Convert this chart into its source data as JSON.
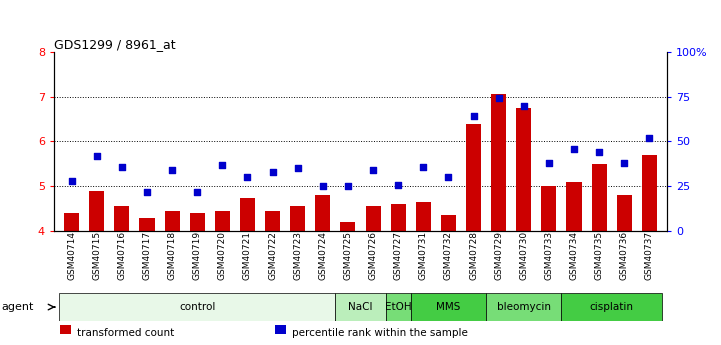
{
  "title": "GDS1299 / 8961_at",
  "samples": [
    "GSM40714",
    "GSM40715",
    "GSM40716",
    "GSM40717",
    "GSM40718",
    "GSM40719",
    "GSM40720",
    "GSM40721",
    "GSM40722",
    "GSM40723",
    "GSM40724",
    "GSM40725",
    "GSM40726",
    "GSM40727",
    "GSM40731",
    "GSM40732",
    "GSM40728",
    "GSM40729",
    "GSM40730",
    "GSM40733",
    "GSM40734",
    "GSM40735",
    "GSM40736",
    "GSM40737"
  ],
  "bar_values": [
    4.4,
    4.9,
    4.55,
    4.3,
    4.45,
    4.4,
    4.45,
    4.75,
    4.45,
    4.55,
    4.8,
    4.2,
    4.55,
    4.6,
    4.65,
    4.35,
    6.4,
    7.05,
    6.75,
    5.0,
    5.1,
    5.5,
    4.8,
    5.7
  ],
  "scatter_values": [
    28,
    42,
    36,
    22,
    34,
    22,
    37,
    30,
    33,
    35,
    25,
    25,
    34,
    26,
    36,
    30,
    64,
    74,
    70,
    38,
    46,
    44,
    38,
    52
  ],
  "bar_color": "#cc0000",
  "scatter_color": "#0000cc",
  "ylim_left": [
    4.0,
    8.0
  ],
  "ylim_right": [
    0,
    100
  ],
  "yticks_left": [
    4,
    5,
    6,
    7,
    8
  ],
  "yticks_right": [
    0,
    25,
    50,
    75,
    100
  ],
  "yticklabels_right": [
    "0",
    "25",
    "50",
    "75",
    "100%"
  ],
  "agent_groups": [
    {
      "label": "control",
      "start": 0,
      "end": 11,
      "color": "#e8f8e8"
    },
    {
      "label": "NaCl",
      "start": 11,
      "end": 13,
      "color": "#bbeebb"
    },
    {
      "label": "EtOH",
      "start": 13,
      "end": 14,
      "color": "#77dd77"
    },
    {
      "label": "MMS",
      "start": 14,
      "end": 17,
      "color": "#44cc44"
    },
    {
      "label": "bleomycin",
      "start": 17,
      "end": 20,
      "color": "#77dd77"
    },
    {
      "label": "cisplatin",
      "start": 20,
      "end": 24,
      "color": "#44cc44"
    }
  ],
  "legend_items": [
    {
      "label": "transformed count",
      "color": "#cc0000"
    },
    {
      "label": "percentile rank within the sample",
      "color": "#0000cc"
    }
  ],
  "agent_label": "agent"
}
